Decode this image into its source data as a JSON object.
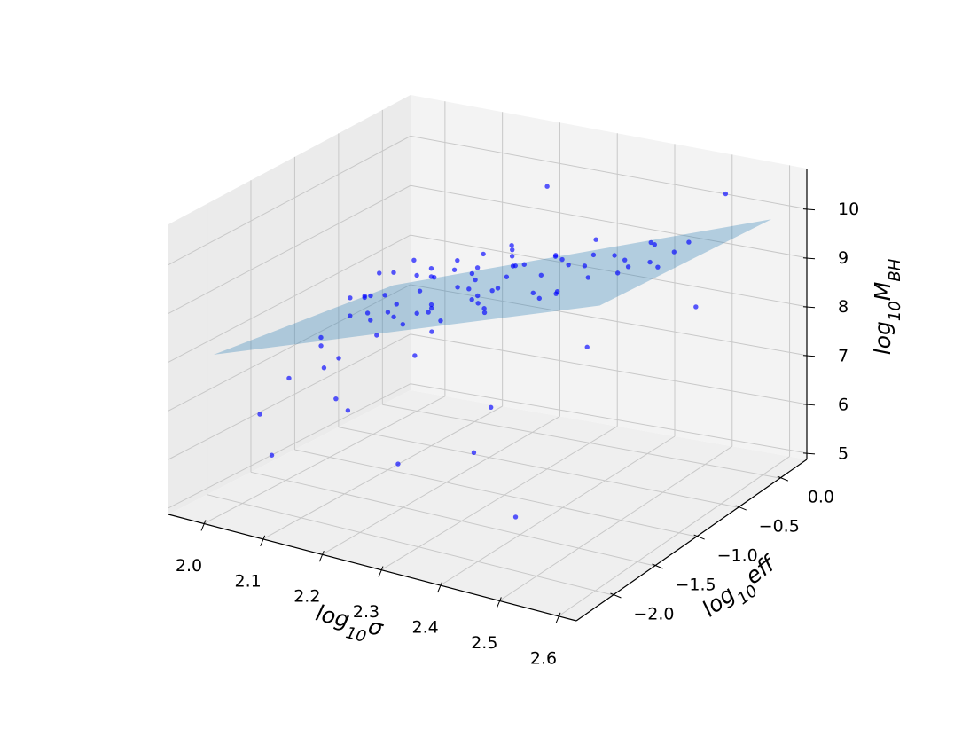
{
  "chart_data": {
    "type": "scatter3d",
    "xlabel": [
      {
        "text": "log"
      },
      {
        "text": "10",
        "sub": true
      },
      {
        "text": "σ"
      }
    ],
    "ylabel": [
      {
        "text": "log"
      },
      {
        "text": "10",
        "sub": true
      },
      {
        "text": "eff"
      }
    ],
    "zlabel": [
      {
        "text": "log"
      },
      {
        "text": "10",
        "sub": true
      },
      {
        "text": "M"
      },
      {
        "text": "BH",
        "sub": true
      }
    ],
    "xlim": [
      1.94,
      2.63
    ],
    "ylim": [
      -2.44,
      0.32
    ],
    "zlim": [
      4.87,
      10.83
    ],
    "xticks": [
      {
        "value": 2,
        "label": "2.0"
      },
      2.1,
      2.2,
      2.3,
      2.4,
      2.5,
      2.6
    ],
    "yticks": [
      {
        "value": -2,
        "label": "−2.0"
      },
      {
        "value": -1.5,
        "label": "−1.5"
      },
      {
        "value": -1,
        "label": "−1.0"
      },
      {
        "value": -0.5,
        "label": "−0.5"
      },
      {
        "value": 0,
        "label": "0.0"
      }
    ],
    "zticks": [
      5,
      6,
      7,
      8,
      9,
      10
    ],
    "grid": true,
    "surface": {
      "color": "#1f77b4",
      "opacity": 0.3,
      "x": [
        1.975,
        2.63
      ],
      "y": [
        -2.16,
        -0.105
      ],
      "z": [
        [
          7.99,
          7.46
        ],
        [
          10.8,
          10.27
        ]
      ]
    },
    "series": [
      {
        "color": "#0000ff",
        "x": [
          2.02,
          2.05,
          2.08,
          2.1,
          2.12,
          2.15,
          2.03,
          2.06,
          2.09,
          2.11,
          2.13,
          2.16,
          2.18,
          2.2,
          2.22,
          2.04,
          2.07,
          2.01,
          2.14,
          2.17,
          2.19,
          2.21,
          2.24,
          2.26,
          2.28,
          2.3,
          2.32,
          2.34,
          2.36,
          2.38,
          2.4,
          2.42,
          2.45,
          2.48,
          2.5,
          2.53,
          2.55,
          2.12,
          2.09,
          2.06,
          2.03,
          2.0,
          1.99,
          2.02,
          2.05,
          2.08,
          2.11,
          2.14,
          2.17,
          2.2,
          2.23,
          2.25,
          2.27,
          2.29,
          2.31,
          2.33,
          2.35,
          2.37,
          2.39,
          2.41,
          2.44,
          2.46,
          2.49,
          2.52,
          2.1,
          2.13,
          2.16,
          2.19,
          2.22,
          2.07,
          2.04,
          2.18,
          2.26,
          2.3,
          2.0,
          2.05,
          2.25,
          2.35,
          2.45,
          2.4,
          2.3,
          2.55,
          2.15,
          2.1,
          2.6,
          2.5,
          2.02,
          2.35,
          1.98,
          2.22
        ],
        "y": [
          -0.9,
          -0.7,
          -1.1,
          -0.5,
          -0.8,
          -0.3,
          -1.3,
          -0.2,
          -0.6,
          -1.0,
          -0.4,
          -0.9,
          -0.1,
          -0.7,
          -1.2,
          -0.5,
          -0.3,
          -0.6,
          -1.4,
          -0.5,
          -0.8,
          -0.3,
          -0.9,
          -0.6,
          -1.1,
          -0.4,
          -0.8,
          -0.2,
          -1.0,
          -0.5,
          -0.7,
          -1.2,
          -0.3,
          -0.9,
          -0.6,
          -0.4,
          -1.0,
          -0.2,
          -1.5,
          -1.0,
          -0.8,
          -1.1,
          -0.7,
          -0.4,
          -1.4,
          -0.1,
          -0.6,
          -0.9,
          -1.3,
          -0.4,
          -0.5,
          -1.0,
          -0.2,
          -0.7,
          -1.3,
          -0.6,
          -0.4,
          -0.8,
          -0.2,
          -1.0,
          -0.5,
          -0.8,
          -0.3,
          -0.7,
          -1.2,
          -0.7,
          -0.3,
          -1.1,
          -0.6,
          -0.8,
          -0.3,
          -0.5,
          -0.3,
          -0.9,
          -1.8,
          -2.0,
          -1.9,
          -1.7,
          -1.9,
          -1.6,
          -0.5,
          -0.1,
          -1.8,
          -1.6,
          -0.8,
          -1.4,
          -1.6,
          -1.5,
          -0.3,
          -1.5
        ],
        "z": [
          7.7,
          8.0,
          8.1,
          8.3,
          7.9,
          8.4,
          7.5,
          7.9,
          8.4,
          8.0,
          8.6,
          8.2,
          8.5,
          8.8,
          8.4,
          7.6,
          8.2,
          7.3,
          8.1,
          8.0,
          8.6,
          8.9,
          8.5,
          9.0,
          8.7,
          9.1,
          8.8,
          9.3,
          9.0,
          9.4,
          9.2,
          9.5,
          9.6,
          9.7,
          10.0,
          9.9,
          10.2,
          7.8,
          7.6,
          8.3,
          8.0,
          7.4,
          7.8,
          8.1,
          7.2,
          8.0,
          7.7,
          8.5,
          8.3,
          8.2,
          8.6,
          9.1,
          8.8,
          9.2,
          8.9,
          8.6,
          9.0,
          9.6,
          9.0,
          9.8,
          9.3,
          9.9,
          9.5,
          9.7,
          8.6,
          8.0,
          8.7,
          8.0,
          8.4,
          7.8,
          8.3,
          8.1,
          8.5,
          9.4,
          6.5,
          6.0,
          6.3,
          6.6,
          5.8,
          10.8,
          10.6,
          10.6,
          7.0,
          6.9,
          9.2,
          8.8,
          7.1,
          7.3,
          7.9,
          8.0
        ]
      }
    ]
  }
}
